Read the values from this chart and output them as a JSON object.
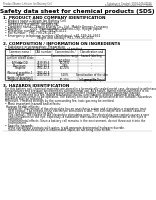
{
  "background_color": "#ffffff",
  "header_left": "Product Name: Lithium Ion Battery Cell",
  "header_right_line1": "Substance Control: 5800-049-00016",
  "header_right_line2": "Establishment / Revision: Dec.7.2009",
  "title": "Safety data sheet for chemical products (SDS)",
  "section1_title": "1. PRODUCT AND COMPANY IDENTIFICATION",
  "section1_lines": [
    "  • Product name: Lithium Ion Battery Cell",
    "  • Product code: Cylindrical-type cell",
    "     IHF86650, IHF18650, IHF14650A",
    "  • Company name:   Sanyo Energy Co., Ltd.  Mobile Energy Company",
    "  • Address:         2001  Kamitakatani, Sumoto-City, Hyogo, Japan",
    "  • Telephone number:   +81-799-26-4111",
    "  • Fax number:  +81-799-26-4129",
    "  • Emergency telephone number (Weekdays) +81-799-26-2662",
    "                                  (Night and holiday) +81-799-26-4101"
  ],
  "section2_title": "2. COMPOSITION / INFORMATION ON INGREDIENTS",
  "section2_sub": "  • Substance or preparation: Preparation",
  "section2_table_label": "  • Information about the chemical nature of product",
  "table_cols": [
    "Common name /\nGeneric name",
    "CAS number",
    "Concentration /\nConcentration range\n(50-60%)",
    "Classification and\nhazard labeling"
  ],
  "table_rows": [
    [
      "Lithium cobalt oxide\n(LiMn-Co)O2)",
      "-",
      "-",
      "-"
    ],
    [
      "Iron",
      "7439-89-6",
      "10-25%",
      "-"
    ],
    [
      "Aluminum",
      "7429-90-5",
      "2-8%",
      "-"
    ],
    [
      "Graphite\n(Natural graphite-1\n(Artificial graphite))",
      "7782-42-5\n7782-42-5",
      "10-20%",
      "-"
    ],
    [
      "Copper",
      "7440-50-8",
      "5-10%",
      "Sensitization of the skin\ngroup No.2"
    ],
    [
      "Organic electrolyte",
      "-",
      "10-20%",
      "Inflammation liquid"
    ]
  ],
  "section3_title": "3. HAZARDS IDENTIFICATION",
  "section3_para": [
    "For this battery cell, chemical materials are stored in a hermetically sealed metal case, designed to withstand",
    "temperatures and pressure environments during normal use. As a result, during normal use, there is no",
    "physical change in condition by evaporation and therefore change of hazardous materials leakage.",
    "However, if exposed to a fire, added mechanical shocks, overcharged, achieve abnormal miss-use,",
    "the gas causes current to be operated. The battery cell case will be penetrated at the cathode, hazardous",
    "materials may be released.",
    "Moreover, if heated strongly by the surrounding fire, toxic gas may be emitted."
  ],
  "bullet1": "  • Most important hazard and effects:",
  "health_label": "   Human health effects:",
  "health_lines": [
    "      Inhalation: The release of the electrolyte has an anesthesia action and stimulates a respiratory tract.",
    "      Skin contact: The release of the electrolyte stimulates a skin. The electrolyte skin contact causes a",
    "      sore and stimulation on the skin.",
    "      Eye contact: The release of the electrolyte stimulates eyes. The electrolyte eye contact causes a sore",
    "      and stimulation on the eye. Especially, a substance that causes a strong inflammation of the eyes is",
    "      contained.",
    "      Environmental effects: Since a battery cell remains in the environment, do not throw out it into the",
    "      environment."
  ],
  "bullet2": "  • Specific hazards:",
  "specific_lines": [
    "      If the electrolyte contacts with water, it will generate detrimental hydrogen fluoride.",
    "      Since the liquid electrolyte is inflammable liquid, do not bring close to fire."
  ]
}
